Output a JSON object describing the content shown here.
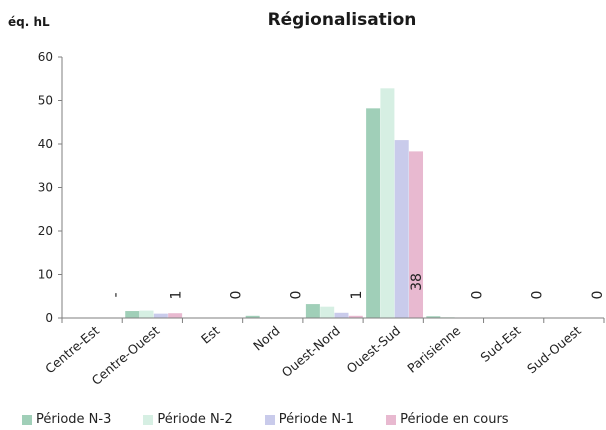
{
  "chart_data": {
    "type": "bar",
    "title": "Régionalisation",
    "ylabel": "éq. hL",
    "xlabel": "",
    "ylim": [
      0,
      60
    ],
    "yticks": [
      0,
      10,
      20,
      30,
      40,
      50,
      60
    ],
    "categories": [
      "Centre-Est",
      "Centre-Ouest",
      "Est",
      "Nord",
      "Ouest-Nord",
      "Ouest-Sud",
      "Parisienne",
      "Sud-Est",
      "Sud-Ouest"
    ],
    "series": [
      {
        "name": "Période N-3",
        "color": "#a0cfb8",
        "values": [
          0,
          1.6,
          0,
          0.5,
          3.2,
          48.2,
          0.4,
          0,
          0
        ]
      },
      {
        "name": "Période N-2",
        "color": "#d6efe3",
        "values": [
          0,
          1.7,
          0,
          0,
          2.6,
          52.8,
          0.2,
          0.1,
          0
        ]
      },
      {
        "name": "Période N-1",
        "color": "#c9cbeb",
        "values": [
          0,
          1.0,
          0,
          0,
          1.2,
          40.9,
          0,
          0,
          0
        ]
      },
      {
        "name": "Période en cours",
        "color": "#e8b9d0",
        "values": [
          0,
          1.1,
          0,
          0,
          0.5,
          38.3,
          0,
          0,
          0
        ]
      }
    ],
    "data_labels": [
      "-",
      "1",
      "0",
      "0",
      "1",
      "38",
      "0",
      "0",
      "0"
    ],
    "grid": false,
    "legend": "bottom"
  }
}
